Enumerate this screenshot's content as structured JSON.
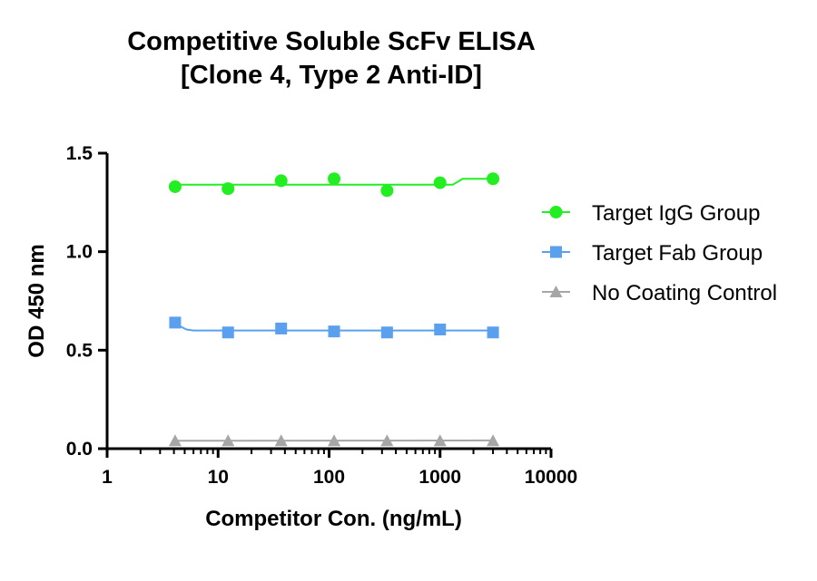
{
  "chart_data": {
    "type": "scatter",
    "title": [
      "Competitive Soluble ScFv ELISA",
      "[Clone 4, Type 2 Anti-ID]"
    ],
    "xlabel": "Competitor Con. (ng/mL)",
    "ylabel": "OD 450 nm",
    "xscale": "log",
    "xlim": [
      1,
      10000
    ],
    "ylim": [
      0,
      1.5
    ],
    "xticks": [
      1,
      10,
      100,
      1000,
      10000
    ],
    "xtick_labels": [
      "1",
      "10",
      "100",
      "1000",
      "10000"
    ],
    "yticks": [
      0,
      0.5,
      1.0,
      1.5
    ],
    "ytick_labels": [
      "0.0",
      "0.5",
      "1.0",
      "1.5"
    ],
    "grid": false,
    "legend_position": "right",
    "x": [
      4.1,
      12.3,
      37,
      111,
      333,
      1000,
      3000
    ],
    "series": [
      {
        "name": "Target IgG Group",
        "marker": "circle",
        "color": "#22ee22",
        "values": [
          1.33,
          1.32,
          1.36,
          1.37,
          1.31,
          1.35,
          1.37
        ],
        "fit": [
          [
            4.1,
            1.34
          ],
          [
            1300,
            1.34
          ],
          [
            1600,
            1.37
          ],
          [
            3000,
            1.37
          ]
        ]
      },
      {
        "name": "Target Fab Group",
        "marker": "square",
        "color": "#5aa0ee",
        "values": [
          0.64,
          0.59,
          0.61,
          0.595,
          0.59,
          0.605,
          0.59
        ],
        "fit": [
          [
            4.1,
            0.64
          ],
          [
            4.6,
            0.62
          ],
          [
            5.2,
            0.605
          ],
          [
            6,
            0.6
          ],
          [
            3000,
            0.6
          ]
        ]
      },
      {
        "name": "No Coating Control",
        "marker": "triangle",
        "color": "#a6a6a6",
        "values": [
          0.04,
          0.04,
          0.04,
          0.04,
          0.04,
          0.04,
          0.04
        ],
        "fit": [
          [
            4.1,
            0.04
          ],
          [
            3000,
            0.042
          ]
        ]
      }
    ]
  }
}
